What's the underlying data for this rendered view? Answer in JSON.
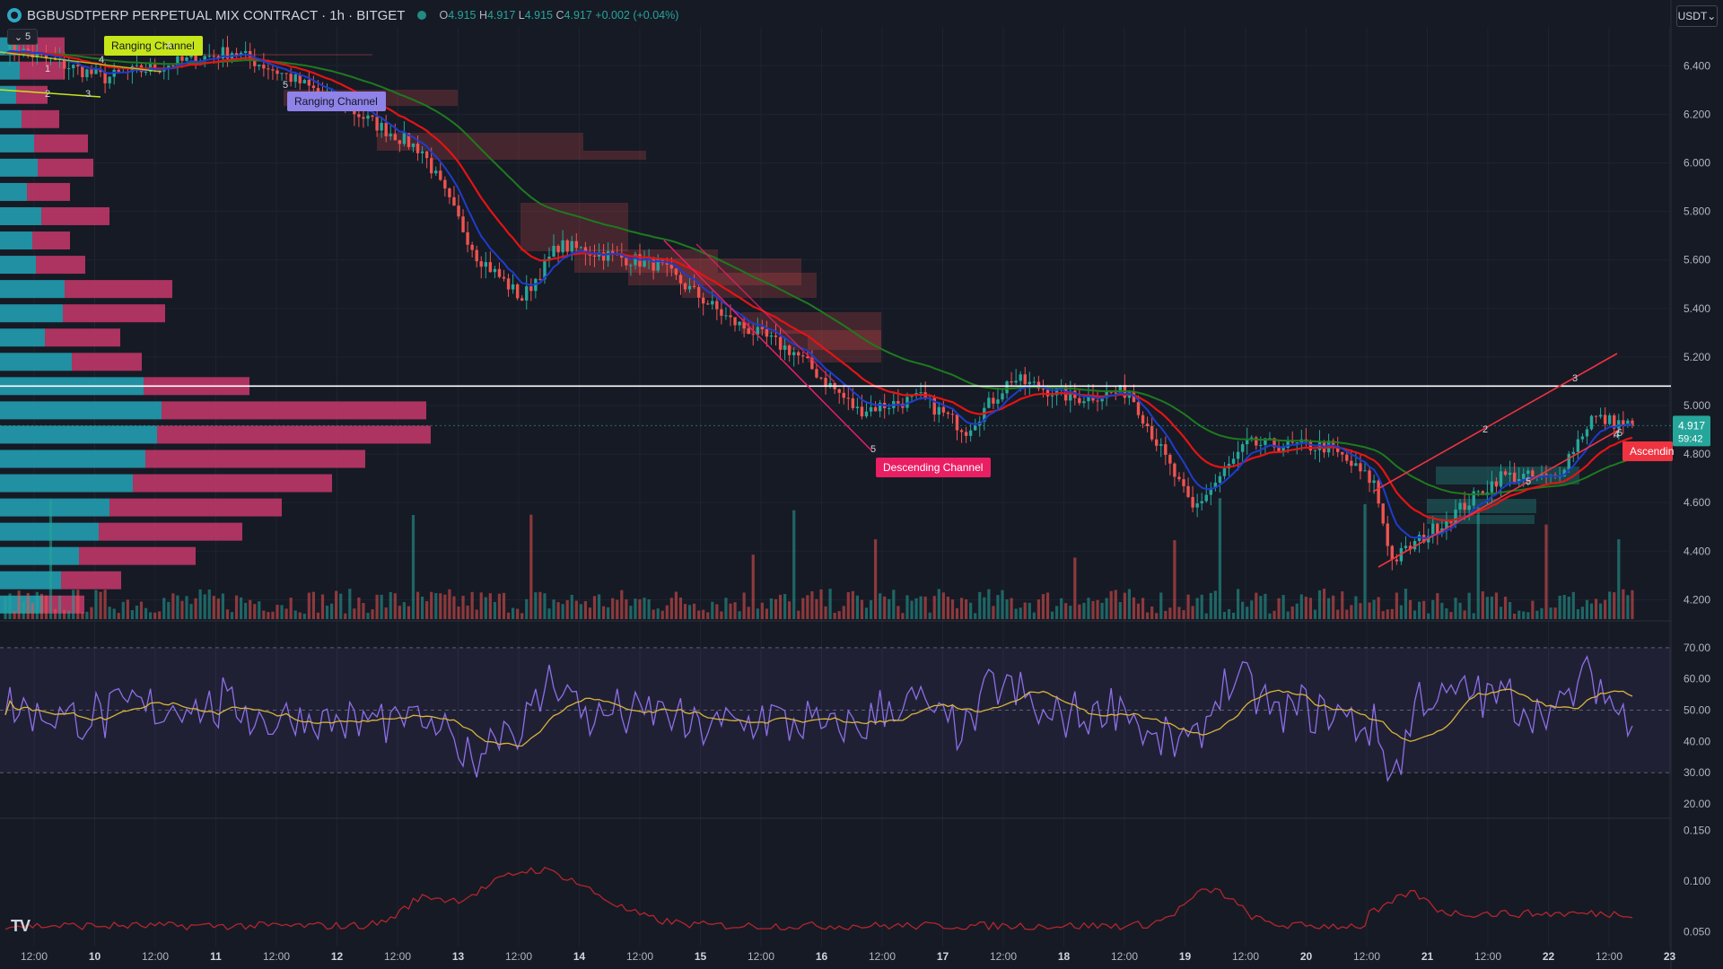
{
  "header": {
    "symbol": "BGBUSDTPERP PERPETUAL MIX CONTRACT · 1h · BITGET",
    "o_label": "O",
    "o": "4.915",
    "h_label": "H",
    "h": "4.917",
    "l_label": "L",
    "l": "4.915",
    "c_label": "C",
    "c": "4.917",
    "change": "+0.002 (+0.04%)"
  },
  "collapse_label": "5",
  "currency_button": "USDT",
  "price_axis": {
    "ticks": [
      "6.400",
      "6.200",
      "6.000",
      "5.800",
      "5.600",
      "5.400",
      "5.200",
      "5.000",
      "4.800",
      "4.600",
      "4.400",
      "4.200"
    ],
    "last_price": "4.917",
    "countdown": "59:42"
  },
  "rsi_axis": {
    "ticks": [
      "70.00",
      "60.00",
      "50.00",
      "40.00",
      "30.00",
      "20.00"
    ]
  },
  "third_axis": {
    "ticks": [
      "0.150",
      "0.100",
      "0.050"
    ]
  },
  "time_axis": {
    "ticks": [
      "12:00",
      "10",
      "12:00",
      "11",
      "12:00",
      "12",
      "12:00",
      "13",
      "12:00",
      "14",
      "12:00",
      "15",
      "12:00",
      "16",
      "12:00",
      "17",
      "12:00",
      "18",
      "12:00",
      "19",
      "12:00",
      "20",
      "12:00",
      "21",
      "12:00",
      "22",
      "12:00",
      "23"
    ]
  },
  "annotations": {
    "ranging1": "Ranging Channel",
    "ranging2": "Ranging Channel",
    "descending": "Descending Channel",
    "ascending": "Ascendin"
  },
  "wave_labels": [
    "4",
    "1",
    "2",
    "3",
    "4",
    "5",
    "5",
    "2",
    "5",
    "3",
    "4",
    "5"
  ],
  "colors": {
    "background": "#161a25",
    "up": "#26a69a",
    "down": "#ef5350",
    "ema_fast": "#1e3ccc",
    "ema_mid": "#e31414",
    "ema_slow": "#1e7a1e",
    "rsi": "#8c6fe6",
    "rsi_ma": "#d7b43a",
    "third": "#b3262c"
  },
  "logo_text": "TV",
  "chart_data": {
    "type": "candlestick",
    "price_range": [
      4.12,
      6.56
    ],
    "rsi_range": [
      16,
      78
    ],
    "third_range": [
      0.04,
      0.16
    ],
    "horizontal_line": 5.08,
    "price_key_points": [
      {
        "t": 0,
        "v": 6.48
      },
      {
        "t": 22,
        "v": 6.35
      },
      {
        "t": 50,
        "v": 6.46
      },
      {
        "t": 62,
        "v": 6.36
      },
      {
        "t": 76,
        "v": 6.22
      },
      {
        "t": 92,
        "v": 6.05
      },
      {
        "t": 104,
        "v": 5.62
      },
      {
        "t": 114,
        "v": 5.44
      },
      {
        "t": 122,
        "v": 5.66
      },
      {
        "t": 144,
        "v": 5.58
      },
      {
        "t": 160,
        "v": 5.35
      },
      {
        "t": 174,
        "v": 5.22
      },
      {
        "t": 188,
        "v": 4.98
      },
      {
        "t": 202,
        "v": 5.03
      },
      {
        "t": 212,
        "v": 4.9
      },
      {
        "t": 222,
        "v": 5.11
      },
      {
        "t": 236,
        "v": 5.03
      },
      {
        "t": 248,
        "v": 5.06
      },
      {
        "t": 256,
        "v": 4.78
      },
      {
        "t": 262,
        "v": 4.57
      },
      {
        "t": 274,
        "v": 4.84
      },
      {
        "t": 292,
        "v": 4.83
      },
      {
        "t": 302,
        "v": 4.68
      },
      {
        "t": 306,
        "v": 4.36
      },
      {
        "t": 318,
        "v": 4.53
      },
      {
        "t": 330,
        "v": 4.71
      },
      {
        "t": 342,
        "v": 4.7
      },
      {
        "t": 350,
        "v": 4.95
      },
      {
        "t": 359,
        "v": 4.917
      }
    ],
    "volume_profile": [
      {
        "price": 6.48,
        "up": 20,
        "down": 52
      },
      {
        "price": 6.38,
        "up": 22,
        "down": 50
      },
      {
        "price": 6.28,
        "up": 18,
        "down": 35
      },
      {
        "price": 6.18,
        "up": 24,
        "down": 42
      },
      {
        "price": 6.08,
        "up": 38,
        "down": 60
      },
      {
        "price": 5.98,
        "up": 42,
        "down": 62
      },
      {
        "price": 5.88,
        "up": 30,
        "down": 48
      },
      {
        "price": 5.78,
        "up": 46,
        "down": 76
      },
      {
        "price": 5.68,
        "up": 36,
        "down": 42
      },
      {
        "price": 5.58,
        "up": 40,
        "down": 55
      },
      {
        "price": 5.48,
        "up": 72,
        "down": 120
      },
      {
        "price": 5.38,
        "up": 70,
        "down": 114
      },
      {
        "price": 5.28,
        "up": 50,
        "down": 84
      },
      {
        "price": 5.18,
        "up": 80,
        "down": 78
      },
      {
        "price": 5.08,
        "up": 160,
        "down": 118
      },
      {
        "price": 4.98,
        "up": 180,
        "down": 295
      },
      {
        "price": 4.88,
        "up": 175,
        "down": 305
      },
      {
        "price": 4.78,
        "up": 162,
        "down": 245
      },
      {
        "price": 4.68,
        "up": 148,
        "down": 222
      },
      {
        "price": 4.58,
        "up": 122,
        "down": 192
      },
      {
        "price": 4.48,
        "up": 110,
        "down": 160
      },
      {
        "price": 4.38,
        "up": 88,
        "down": 130
      },
      {
        "price": 4.28,
        "up": 68,
        "down": 67
      },
      {
        "price": 4.18,
        "up": 48,
        "down": 46
      }
    ]
  }
}
